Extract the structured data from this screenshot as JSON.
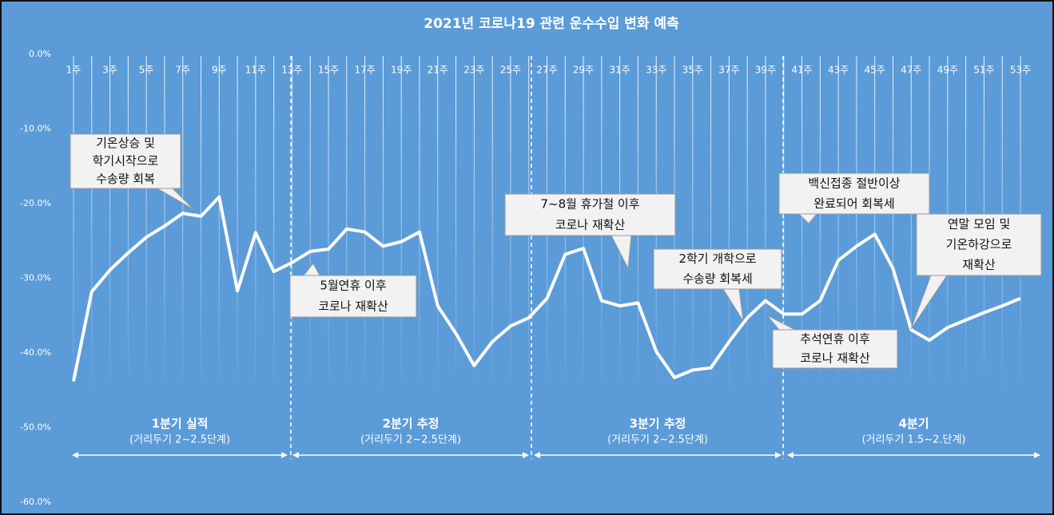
{
  "chart_data": {
    "type": "line",
    "title": "2021년 코로나19 관련 운수수입 변화 예측",
    "categories": [
      "1주",
      null,
      "3주",
      null,
      "5주",
      null,
      "7주",
      null,
      "9주",
      null,
      "11주",
      null,
      "13주",
      null,
      "15주",
      null,
      "17주",
      null,
      "19주",
      null,
      "21주",
      null,
      "23주",
      null,
      "25주",
      null,
      "27주",
      null,
      "29주",
      null,
      "31주",
      null,
      "33주",
      null,
      "35주",
      null,
      "37주",
      null,
      "39주",
      null,
      "41주",
      null,
      "43주",
      null,
      "45주",
      null,
      "47주",
      null,
      "49주",
      null,
      "51주",
      null,
      "53주"
    ],
    "series": [
      {
        "color": "#ffffff",
        "values": [
          -43.8,
          -31.8,
          -28.9,
          -26.6,
          -24.5,
          -23.0,
          -21.3,
          -21.7,
          -19.1,
          -31.7,
          -23.9,
          -29.1,
          -27.9,
          -26.4,
          -26.1,
          -23.4,
          -23.8,
          -25.7,
          -25.1,
          -23.8,
          -33.7,
          -37.4,
          -41.7,
          -38.5,
          -36.4,
          -35.3,
          -32.7,
          -26.8,
          -26.0,
          -33.0,
          -33.7,
          -33.3,
          -39.8,
          -43.3,
          -42.3,
          -42.0,
          -38.5,
          -35.3,
          -33.0,
          -34.8,
          -34.8,
          -33.0,
          -27.6,
          -25.7,
          -24.1,
          -28.7,
          -36.9,
          -38.3,
          -36.6,
          -35.6,
          -34.6,
          -33.7,
          -32.7
        ]
      }
    ],
    "ylim": [
      -60,
      0
    ],
    "yticks": [
      {
        "value": 0,
        "label": "0.0%"
      },
      {
        "value": -10,
        "label": "-10.0%"
      },
      {
        "value": -20,
        "label": "-20.0%"
      },
      {
        "value": -30,
        "label": "-30.0%"
      },
      {
        "value": -40,
        "label": "-40.0%"
      },
      {
        "value": -50,
        "label": "-50.0%"
      },
      {
        "value": -60,
        "label": "-60.0%"
      }
    ],
    "annotations": [
      [
        "기온상승 및",
        "학기시작으로",
        "수송량 회복"
      ],
      [
        "5월연휴 이후",
        "코로나 재확산"
      ],
      [
        "7~8월 휴가철 이후",
        "코로나 재확산"
      ],
      [
        "2학기 개학으로",
        "수송량 회복세"
      ],
      [
        "백신접종 절반이상",
        "완료되어 회복세"
      ],
      [
        "연말 모임 및",
        "기온하강으로",
        "재확산"
      ],
      [
        "추석연휴 이후",
        "코로나 재확산"
      ]
    ],
    "periods": [
      [
        "1분기 실적",
        "(거리두기 2~2.5단계)"
      ],
      [
        "2분기 추정",
        "(거리두기 2~2.5단계)"
      ],
      [
        "3분기 추정",
        "(거리두기 2~2.5단계)"
      ],
      [
        "4분기",
        "(거리두기 1.5~2.단계)"
      ]
    ]
  }
}
